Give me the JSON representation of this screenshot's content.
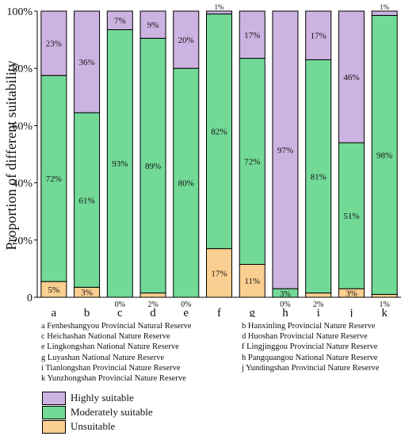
{
  "chart_data": {
    "type": "bar",
    "stacked": true,
    "categories": [
      "a",
      "b",
      "c",
      "d",
      "e",
      "f",
      "g",
      "h",
      "i",
      "j",
      "k"
    ],
    "ylabel": "Proportion of different suitability",
    "ylim": [
      0,
      100
    ],
    "yticks": [
      "0",
      "20%",
      "40%",
      "60%",
      "80%",
      "100%"
    ],
    "series": [
      {
        "name": "Unsuitable",
        "color": "#fbcf91",
        "values": [
          5.5,
          3.5,
          0,
          1.5,
          0,
          17,
          11.5,
          0,
          1.5,
          3,
          1
        ],
        "labels": [
          "5%",
          "3%",
          "0%",
          "2%",
          "0%",
          "17%",
          "11%",
          "0%",
          "2%",
          "3%",
          "1%"
        ]
      },
      {
        "name": "Moderately suitable",
        "color": "#72d997",
        "values": [
          72,
          61,
          93.5,
          89,
          80,
          82,
          72,
          3,
          81.5,
          51,
          97.5
        ],
        "labels": [
          "72%",
          "61%",
          "93%",
          "89%",
          "80%",
          "82%",
          "72%",
          "3%",
          "81%",
          "51%",
          "98%"
        ]
      },
      {
        "name": "Highly suitable",
        "color": "#cdb3e1",
        "values": [
          22.5,
          35.5,
          6.5,
          9.5,
          20,
          1,
          16.5,
          97,
          17,
          46,
          1.5
        ],
        "labels": [
          "23%",
          "36%",
          "7%",
          "9%",
          "20%",
          "1%",
          "17%",
          "97%",
          "17%",
          "46%",
          "1%"
        ]
      }
    ]
  },
  "key": [
    {
      "left": "a  Fenheshangyou Provincial Natural Reserve",
      "right": "b  Hanxinling Provincial Nature Reserve"
    },
    {
      "left": "c  Heichashan National Nature Reserve",
      "right": "d  Huoshan Provincial Nature Reserve"
    },
    {
      "left": "e  Lingkongshan National Nature Reserve",
      "right": "f  Lingjinggou Provincial Nature Reserve"
    },
    {
      "left": "g  Luyashan National Nature Reserve",
      "right": "h  Pangquangou National Nature Reserve"
    },
    {
      "left": "i  Tianlongshan Provincial Nature Reserve",
      "right": "j  Yundingshan Provincial Nature Reserve"
    },
    {
      "left": "k  Yunzhongshan Provincial Nature Reserve",
      "right": ""
    }
  ],
  "legend": [
    {
      "label": "Highly suitable",
      "color": "#cdb3e1"
    },
    {
      "label": "Moderately suitable",
      "color": "#72d997"
    },
    {
      "label": "Unsuitable",
      "color": "#fbcf91"
    }
  ]
}
